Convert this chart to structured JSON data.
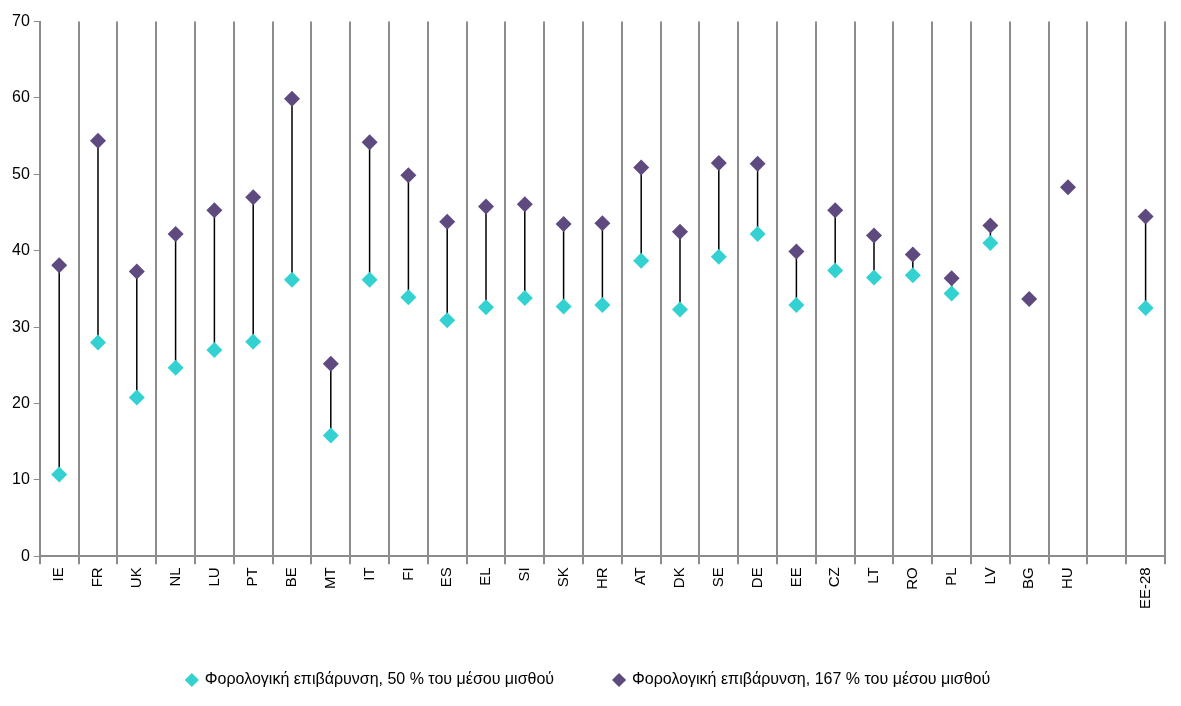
{
  "chart_data": {
    "type": "scatter",
    "categories": [
      "IE",
      "FR",
      "UK",
      "NL",
      "LU",
      "PT",
      "BE",
      "MT",
      "IT",
      "FI",
      "ES",
      "EL",
      "SI",
      "SK",
      "HR",
      "AT",
      "DK",
      "SE",
      "DE",
      "EE",
      "CZ",
      "LT",
      "RO",
      "PL",
      "LV",
      "BG",
      "HU",
      null,
      "EE-28"
    ],
    "series": [
      {
        "name": "Φορολογική επιβάρυνση, 50 % του μέσου μισθού",
        "color": "#33d1d1",
        "values": [
          10.7,
          28.0,
          20.8,
          24.7,
          27.0,
          28.1,
          36.2,
          15.8,
          36.2,
          33.9,
          30.9,
          32.6,
          33.8,
          32.7,
          32.9,
          38.7,
          32.3,
          39.2,
          42.2,
          32.9,
          37.4,
          36.5,
          36.8,
          34.4,
          41.0,
          null,
          null,
          null,
          32.5
        ]
      },
      {
        "name": "Φορολογική επιβάρυνση, 167 % του μέσου μισθού",
        "color": "#5e4a7e",
        "values": [
          38.1,
          54.4,
          37.3,
          42.2,
          45.3,
          47.0,
          59.9,
          25.2,
          54.2,
          49.9,
          43.8,
          45.8,
          46.1,
          43.5,
          43.6,
          50.9,
          42.5,
          51.5,
          51.4,
          39.9,
          45.3,
          42.0,
          39.5,
          36.4,
          43.3,
          33.7,
          48.3,
          null,
          44.5
        ]
      }
    ],
    "ylim": [
      0,
      70
    ],
    "yticks": [
      0,
      10,
      20,
      30,
      40,
      50,
      60,
      70
    ],
    "grid": "x",
    "legend": "bottom",
    "marker": "diamond"
  }
}
